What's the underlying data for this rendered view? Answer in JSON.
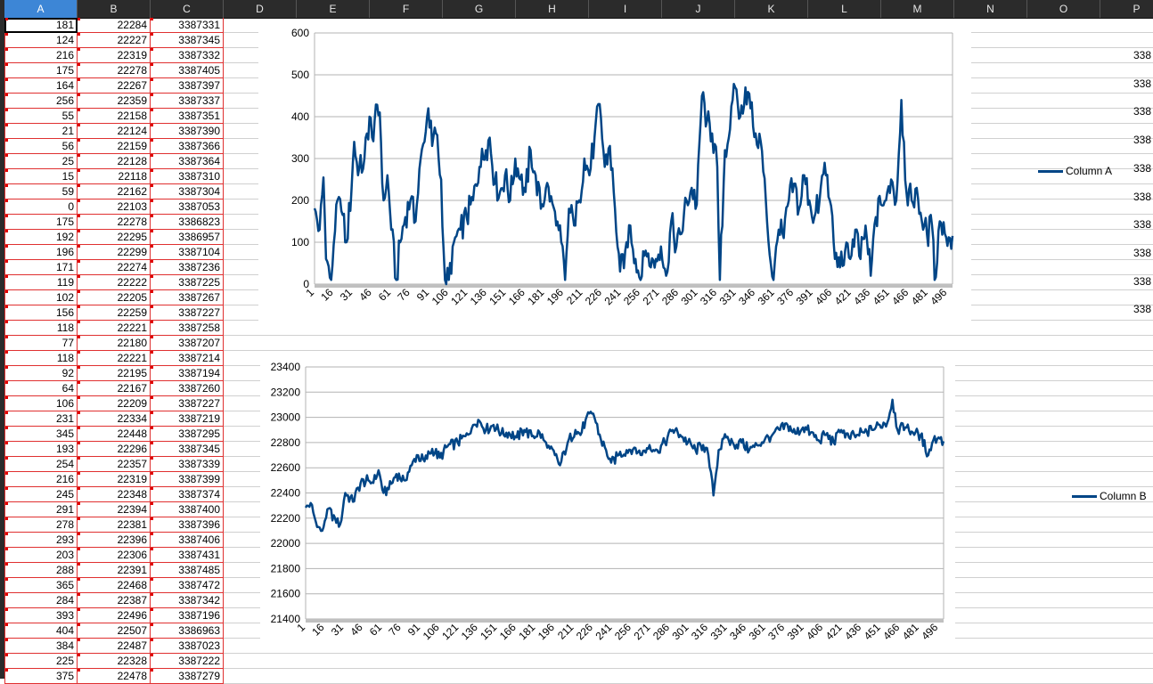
{
  "columns": [
    "A",
    "B",
    "C",
    "D",
    "E",
    "F",
    "G",
    "H",
    "I",
    "J",
    "K",
    "L",
    "M",
    "N",
    "O",
    "P"
  ],
  "selected_column": "A",
  "rows": [
    [
      "181",
      "22284",
      "3387331"
    ],
    [
      "124",
      "22227",
      "3387345"
    ],
    [
      "216",
      "22319",
      "3387332"
    ],
    [
      "175",
      "22278",
      "3387405"
    ],
    [
      "164",
      "22267",
      "3387397"
    ],
    [
      "256",
      "22359",
      "3387337"
    ],
    [
      "55",
      "22158",
      "3387351"
    ],
    [
      "21",
      "22124",
      "3387390"
    ],
    [
      "56",
      "22159",
      "3387366"
    ],
    [
      "25",
      "22128",
      "3387364"
    ],
    [
      "15",
      "22118",
      "3387310"
    ],
    [
      "59",
      "22162",
      "3387304"
    ],
    [
      "0",
      "22103",
      "3387053"
    ],
    [
      "175",
      "22278",
      "3386823"
    ],
    [
      "192",
      "22295",
      "3386957"
    ],
    [
      "196",
      "22299",
      "3387104"
    ],
    [
      "171",
      "22274",
      "3387236"
    ],
    [
      "119",
      "22222",
      "3387225"
    ],
    [
      "102",
      "22205",
      "3387267"
    ],
    [
      "156",
      "22259",
      "3387227"
    ],
    [
      "118",
      "22221",
      "3387258"
    ],
    [
      "77",
      "22180",
      "3387207"
    ],
    [
      "118",
      "22221",
      "3387214"
    ],
    [
      "92",
      "22195",
      "3387194"
    ],
    [
      "64",
      "22167",
      "3387260"
    ],
    [
      "106",
      "22209",
      "3387227"
    ],
    [
      "231",
      "22334",
      "3387219"
    ],
    [
      "345",
      "22448",
      "3387295"
    ],
    [
      "193",
      "22296",
      "3387345"
    ],
    [
      "254",
      "22357",
      "3387339"
    ],
    [
      "216",
      "22319",
      "3387399"
    ],
    [
      "245",
      "22348",
      "3387374"
    ],
    [
      "291",
      "22394",
      "3387400"
    ],
    [
      "278",
      "22381",
      "3387396"
    ],
    [
      "293",
      "22396",
      "3387406"
    ],
    [
      "203",
      "22306",
      "3387431"
    ],
    [
      "288",
      "22391",
      "3387485"
    ],
    [
      "365",
      "22468",
      "3387472"
    ],
    [
      "284",
      "22387",
      "3387342"
    ],
    [
      "393",
      "22496",
      "3387196"
    ],
    [
      "404",
      "22507",
      "3386963"
    ],
    [
      "384",
      "22487",
      "3387023"
    ],
    [
      "225",
      "22328",
      "3387222"
    ],
    [
      "375",
      "22478",
      "3387279"
    ]
  ],
  "p_column_values": [
    "338",
    "338",
    "338",
    "338",
    "338",
    "338",
    "338",
    "338",
    "338",
    "338"
  ],
  "chart_data": [
    {
      "type": "line",
      "series": [
        {
          "name": "Column A"
        }
      ],
      "ylim": [
        0,
        600
      ],
      "yticks": [
        0,
        100,
        200,
        300,
        400,
        500,
        600
      ],
      "x_tick_labels": [
        "1",
        "16",
        "31",
        "46",
        "61",
        "76",
        "91",
        "106",
        "121",
        "136",
        "151",
        "166",
        "181",
        "196",
        "211",
        "226",
        "241",
        "256",
        "271",
        "286",
        "301",
        "316",
        "331",
        "346",
        "361",
        "376",
        "391",
        "406",
        "421",
        "436",
        "451",
        "466",
        "481",
        "496"
      ],
      "x_count": 500,
      "anchors": [
        [
          1,
          181
        ],
        [
          5,
          130
        ],
        [
          8,
          255
        ],
        [
          10,
          60
        ],
        [
          14,
          10
        ],
        [
          18,
          190
        ],
        [
          22,
          175
        ],
        [
          26,
          100
        ],
        [
          30,
          230
        ],
        [
          32,
          340
        ],
        [
          35,
          260
        ],
        [
          40,
          300
        ],
        [
          44,
          400
        ],
        [
          46,
          350
        ],
        [
          48,
          390
        ],
        [
          52,
          410
        ],
        [
          55,
          200
        ],
        [
          58,
          260
        ],
        [
          61,
          130
        ],
        [
          65,
          10
        ],
        [
          68,
          100
        ],
        [
          72,
          160
        ],
        [
          76,
          200
        ],
        [
          80,
          150
        ],
        [
          84,
          300
        ],
        [
          87,
          340
        ],
        [
          90,
          420
        ],
        [
          93,
          330
        ],
        [
          96,
          360
        ],
        [
          100,
          250
        ],
        [
          103,
          10
        ],
        [
          106,
          10
        ],
        [
          110,
          100
        ],
        [
          115,
          130
        ],
        [
          120,
          160
        ],
        [
          125,
          200
        ],
        [
          130,
          280
        ],
        [
          135,
          320
        ],
        [
          138,
          350
        ],
        [
          142,
          240
        ],
        [
          146,
          220
        ],
        [
          150,
          260
        ],
        [
          154,
          200
        ],
        [
          158,
          300
        ],
        [
          162,
          250
        ],
        [
          166,
          220
        ],
        [
          170,
          320
        ],
        [
          174,
          260
        ],
        [
          178,
          180
        ],
        [
          182,
          230
        ],
        [
          186,
          210
        ],
        [
          190,
          140
        ],
        [
          194,
          100
        ],
        [
          197,
          10
        ],
        [
          200,
          180
        ],
        [
          204,
          140
        ],
        [
          208,
          200
        ],
        [
          212,
          300
        ],
        [
          216,
          260
        ],
        [
          220,
          350
        ],
        [
          224,
          430
        ],
        [
          228,
          280
        ],
        [
          232,
          330
        ],
        [
          236,
          180
        ],
        [
          240,
          30
        ],
        [
          244,
          80
        ],
        [
          248,
          140
        ],
        [
          252,
          60
        ],
        [
          256,
          10
        ],
        [
          260,
          80
        ],
        [
          264,
          40
        ],
        [
          268,
          60
        ],
        [
          272,
          90
        ],
        [
          276,
          20
        ],
        [
          280,
          150
        ],
        [
          284,
          90
        ],
        [
          288,
          120
        ],
        [
          292,
          200
        ],
        [
          296,
          230
        ],
        [
          300,
          190
        ],
        [
          304,
          450
        ],
        [
          308,
          390
        ],
        [
          312,
          360
        ],
        [
          316,
          280
        ],
        [
          318,
          10
        ],
        [
          322,
          320
        ],
        [
          326,
          370
        ],
        [
          330,
          470
        ],
        [
          334,
          400
        ],
        [
          338,
          470
        ],
        [
          342,
          420
        ],
        [
          346,
          360
        ],
        [
          350,
          340
        ],
        [
          354,
          200
        ],
        [
          357,
          70
        ],
        [
          360,
          10
        ],
        [
          364,
          130
        ],
        [
          368,
          110
        ],
        [
          372,
          200
        ],
        [
          376,
          240
        ],
        [
          380,
          180
        ],
        [
          384,
          260
        ],
        [
          388,
          200
        ],
        [
          392,
          160
        ],
        [
          396,
          200
        ],
        [
          400,
          290
        ],
        [
          404,
          200
        ],
        [
          408,
          60
        ],
        [
          412,
          40
        ],
        [
          416,
          80
        ],
        [
          420,
          60
        ],
        [
          424,
          130
        ],
        [
          428,
          60
        ],
        [
          432,
          140
        ],
        [
          436,
          20
        ],
        [
          440,
          160
        ],
        [
          444,
          190
        ],
        [
          448,
          200
        ],
        [
          452,
          250
        ],
        [
          456,
          200
        ],
        [
          460,
          440
        ],
        [
          464,
          220
        ],
        [
          468,
          200
        ],
        [
          472,
          230
        ],
        [
          476,
          150
        ],
        [
          480,
          120
        ],
        [
          484,
          140
        ],
        [
          486,
          10
        ],
        [
          490,
          150
        ],
        [
          494,
          120
        ],
        [
          498,
          110
        ],
        [
          500,
          115
        ]
      ],
      "legend_position": "right",
      "grid": true
    },
    {
      "type": "line",
      "series": [
        {
          "name": "Column B"
        }
      ],
      "ylim": [
        21400,
        23400
      ],
      "yticks": [
        21400,
        21600,
        21800,
        22000,
        22200,
        22400,
        22600,
        22800,
        23000,
        23200,
        23400
      ],
      "x_tick_labels": [
        "1",
        "16",
        "31",
        "46",
        "61",
        "76",
        "91",
        "106",
        "121",
        "136",
        "151",
        "166",
        "181",
        "196",
        "211",
        "226",
        "241",
        "256",
        "271",
        "286",
        "301",
        "316",
        "331",
        "346",
        "361",
        "376",
        "391",
        "406",
        "421",
        "436",
        "451",
        "466",
        "481",
        "496"
      ],
      "x_count": 500,
      "anchors": [
        [
          1,
          22284
        ],
        [
          5,
          22320
        ],
        [
          10,
          22130
        ],
        [
          14,
          22100
        ],
        [
          18,
          22270
        ],
        [
          24,
          22200
        ],
        [
          28,
          22150
        ],
        [
          32,
          22400
        ],
        [
          38,
          22330
        ],
        [
          44,
          22480
        ],
        [
          50,
          22500
        ],
        [
          54,
          22480
        ],
        [
          58,
          22580
        ],
        [
          62,
          22400
        ],
        [
          66,
          22430
        ],
        [
          72,
          22550
        ],
        [
          78,
          22500
        ],
        [
          84,
          22620
        ],
        [
          88,
          22700
        ],
        [
          94,
          22650
        ],
        [
          100,
          22750
        ],
        [
          106,
          22680
        ],
        [
          112,
          22770
        ],
        [
          120,
          22800
        ],
        [
          126,
          22850
        ],
        [
          132,
          22940
        ],
        [
          136,
          22980
        ],
        [
          142,
          22900
        ],
        [
          148,
          22940
        ],
        [
          154,
          22870
        ],
        [
          160,
          22880
        ],
        [
          166,
          22840
        ],
        [
          172,
          22900
        ],
        [
          178,
          22850
        ],
        [
          184,
          22880
        ],
        [
          190,
          22760
        ],
        [
          196,
          22700
        ],
        [
          200,
          22620
        ],
        [
          206,
          22800
        ],
        [
          212,
          22900
        ],
        [
          216,
          22860
        ],
        [
          220,
          22980
        ],
        [
          226,
          23030
        ],
        [
          232,
          22820
        ],
        [
          236,
          22740
        ],
        [
          240,
          22640
        ],
        [
          246,
          22700
        ],
        [
          252,
          22740
        ],
        [
          258,
          22760
        ],
        [
          264,
          22700
        ],
        [
          270,
          22780
        ],
        [
          276,
          22740
        ],
        [
          282,
          22800
        ],
        [
          288,
          22900
        ],
        [
          294,
          22860
        ],
        [
          300,
          22800
        ],
        [
          306,
          22740
        ],
        [
          312,
          22780
        ],
        [
          316,
          22700
        ],
        [
          320,
          22380
        ],
        [
          324,
          22740
        ],
        [
          330,
          22840
        ],
        [
          336,
          22780
        ],
        [
          342,
          22800
        ],
        [
          348,
          22740
        ],
        [
          354,
          22780
        ],
        [
          360,
          22820
        ],
        [
          366,
          22860
        ],
        [
          372,
          22900
        ],
        [
          378,
          22940
        ],
        [
          384,
          22870
        ],
        [
          390,
          22920
        ],
        [
          396,
          22880
        ],
        [
          402,
          22820
        ],
        [
          408,
          22860
        ],
        [
          414,
          22800
        ],
        [
          420,
          22900
        ],
        [
          426,
          22840
        ],
        [
          432,
          22860
        ],
        [
          438,
          22880
        ],
        [
          444,
          22900
        ],
        [
          450,
          22940
        ],
        [
          456,
          22960
        ],
        [
          460,
          23140
        ],
        [
          464,
          22900
        ],
        [
          470,
          22920
        ],
        [
          476,
          22880
        ],
        [
          482,
          22860
        ],
        [
          488,
          22700
        ],
        [
          492,
          22820
        ],
        [
          496,
          22840
        ],
        [
          500,
          22810
        ]
      ],
      "legend_position": "right",
      "grid": true
    }
  ],
  "colors": {
    "series": "#004586",
    "grid": "#b3b3b3",
    "selected_header": "#3d86d6",
    "cell_border": "#e03030"
  }
}
